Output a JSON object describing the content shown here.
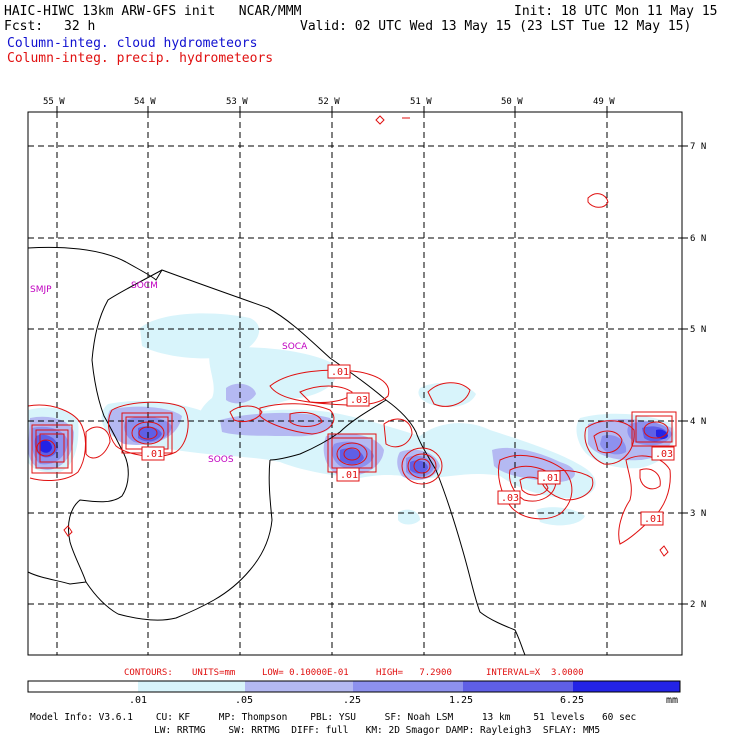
{
  "header": {
    "title_left": "HAIC-HIWC 13km ARW-GFS init   NCAR/MMM",
    "init": "Init: 18 UTC Mon 11 May 15",
    "fcst_label": "Fcst:",
    "fcst_value": "32 h",
    "valid": "Valid: 02 UTC Wed 13 May 15 (23 LST Tue 12 May 15)",
    "legend_cloud": "Column-integ. cloud hydrometeors",
    "legend_precip": "Column-integ. precip. hydrometeors"
  },
  "colors": {
    "cloud_field": "#1010d0",
    "precip_contours": "#e01010",
    "fill_levels": [
      "#d8f4fb",
      "#b4b9f2",
      "#8d91ee",
      "#5f5fe6",
      "#2323e6"
    ]
  },
  "map": {
    "lon_labels": [
      "55 W",
      "54 W",
      "53 W",
      "52 W",
      "51 W",
      "50 W",
      "49 W"
    ],
    "lat_labels": [
      "7 N",
      "6 N",
      "5 N",
      "4 N",
      "3 N",
      "2 N"
    ],
    "stations": [
      "SMJP",
      "SOCM",
      "SOCA",
      "SOOS"
    ],
    "contour_labels": [
      ".01",
      ".03",
      ".01",
      ".01",
      ".03",
      ".01",
      ".03",
      ".01"
    ]
  },
  "contour_info": {
    "contours": "CONTOURS:",
    "units": "UNITS=mm",
    "low": "LOW= 0.10000E-01",
    "high": "HIGH=   7.2900",
    "interval": "INTERVAL=X  3.0000"
  },
  "colorbar": {
    "tick_labels": [
      ".01",
      ".05",
      ".25",
      "1.25",
      "6.25"
    ],
    "units": "mm"
  },
  "model_info": {
    "line1": "Model Info: V3.6.1    CU: KF     MP: Thompson    PBL: YSU     SF: Noah LSM     13 km    51 levels   60 sec",
    "line2": "LW: RRTMG    SW: RRTMG  DIFF: full   KM: 2D Smagor DAMP: Rayleigh3  SFLAY: MM5"
  }
}
